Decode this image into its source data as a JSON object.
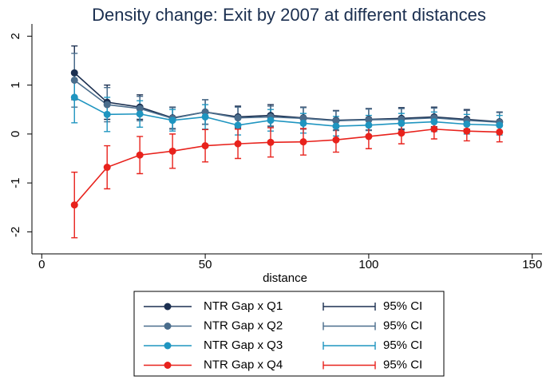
{
  "chart_data": {
    "type": "line",
    "title": "Density change: Exit by 2007 at different distances",
    "x_label": "distance",
    "x": [
      10,
      20,
      30,
      40,
      50,
      60,
      70,
      80,
      90,
      100,
      110,
      120,
      130,
      140
    ],
    "xlim": [
      -3,
      153
    ],
    "xticks": [
      0,
      50,
      100,
      150
    ],
    "ylim": [
      -2.45,
      2.25
    ],
    "yticks": [
      -2,
      -1,
      0,
      1,
      2
    ],
    "grid": false,
    "legend": "bottom",
    "series": [
      {
        "name": "NTR Gap x Q1",
        "color": "#1b2f50",
        "ci_name": "95% CI",
        "values": [
          1.25,
          0.65,
          0.55,
          0.33,
          0.45,
          0.35,
          0.38,
          0.33,
          0.28,
          0.3,
          0.32,
          0.35,
          0.3,
          0.25
        ],
        "error": [
          0.55,
          0.35,
          0.25,
          0.22,
          0.25,
          0.22,
          0.22,
          0.22,
          0.2,
          0.22,
          0.22,
          0.2,
          0.2,
          0.2
        ]
      },
      {
        "name": "NTR Gap x Q2",
        "color": "#4a6d8c",
        "ci_name": "95% CI",
        "values": [
          1.1,
          0.6,
          0.52,
          0.32,
          0.45,
          0.33,
          0.35,
          0.32,
          0.27,
          0.29,
          0.3,
          0.33,
          0.28,
          0.24
        ],
        "error": [
          0.55,
          0.35,
          0.25,
          0.22,
          0.25,
          0.22,
          0.22,
          0.22,
          0.2,
          0.22,
          0.22,
          0.2,
          0.2,
          0.2
        ]
      },
      {
        "name": "NTR Gap x Q3",
        "color": "#1f95c0",
        "ci_name": "95% CI",
        "values": [
          0.75,
          0.4,
          0.41,
          0.28,
          0.35,
          0.18,
          0.28,
          0.22,
          0.16,
          0.18,
          0.22,
          0.25,
          0.2,
          0.18
        ],
        "error": [
          0.52,
          0.35,
          0.27,
          0.22,
          0.25,
          0.2,
          0.22,
          0.2,
          0.2,
          0.2,
          0.2,
          0.2,
          0.2,
          0.2
        ]
      },
      {
        "name": "NTR Gap x Q4",
        "color": "#e8221c",
        "ci_name": "95% CI",
        "values": [
          -1.45,
          -0.68,
          -0.43,
          -0.35,
          -0.24,
          -0.2,
          -0.17,
          -0.16,
          -0.12,
          -0.05,
          0.02,
          0.1,
          0.06,
          0.04
        ],
        "error": [
          0.67,
          0.44,
          0.38,
          0.35,
          0.33,
          0.3,
          0.3,
          0.27,
          0.25,
          0.25,
          0.22,
          0.2,
          0.2,
          0.2
        ]
      }
    ]
  }
}
